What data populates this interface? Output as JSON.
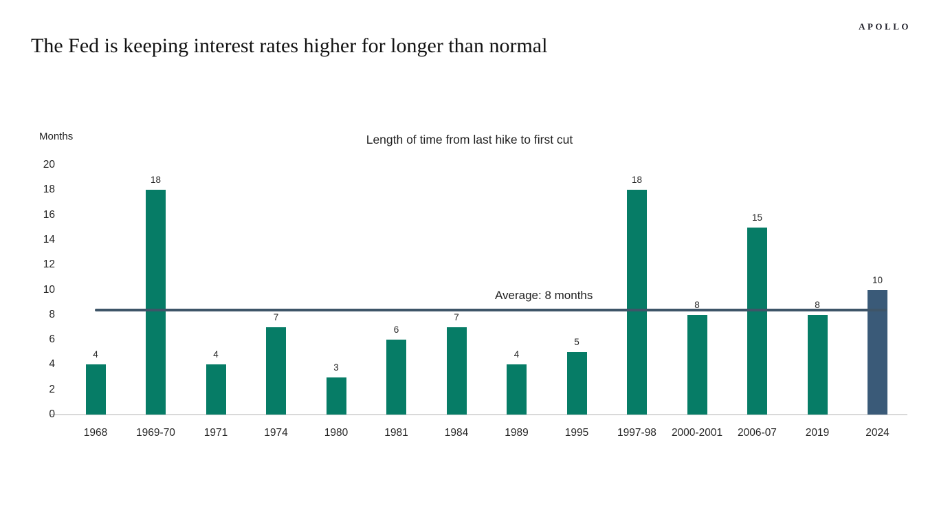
{
  "brand": {
    "logo_text": "APOLLO"
  },
  "page": {
    "title": "The Fed is keeping interest rates higher for longer than normal"
  },
  "chart_data": {
    "type": "bar",
    "title": "Length of time from last hike to first cut",
    "ylabel": "Months",
    "xlabel": "",
    "categories": [
      "1968",
      "1969-70",
      "1971",
      "1974",
      "1980",
      "1981",
      "1984",
      "1989",
      "1995",
      "1997-98",
      "2000-2001",
      "2006-07",
      "2019",
      "2024"
    ],
    "values": [
      4,
      18,
      4,
      7,
      3,
      6,
      7,
      4,
      5,
      18,
      8,
      15,
      8,
      10
    ],
    "highlight_category": "2024",
    "ylim": [
      0,
      20
    ],
    "yticks": [
      0,
      2,
      4,
      6,
      8,
      10,
      12,
      14,
      16,
      18,
      20
    ],
    "grid": false,
    "legend": "none",
    "data_labels": true,
    "average_line": {
      "value": 8.4,
      "label": "Average: 8 months"
    },
    "colors": {
      "bar": "#067c66",
      "highlight_bar": "#3a5a78",
      "average_line": "#3e5568",
      "axis_line": "#d9d9d9",
      "text": "#252525"
    }
  }
}
